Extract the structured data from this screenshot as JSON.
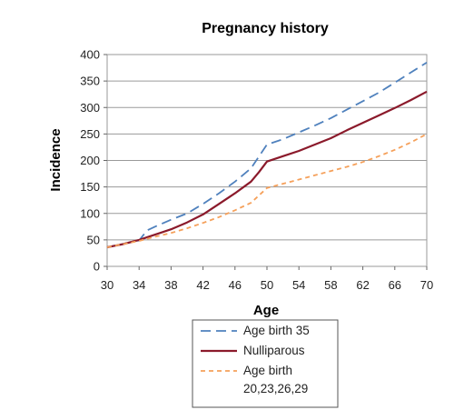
{
  "chart_data": {
    "type": "line",
    "title": "Pregnancy history",
    "xlabel": "Age",
    "ylabel": "Incidence",
    "xlim": [
      30,
      70
    ],
    "ylim": [
      0,
      400
    ],
    "xticks": [
      30,
      34,
      38,
      42,
      46,
      50,
      54,
      58,
      62,
      66,
      70
    ],
    "yticks": [
      0,
      50,
      100,
      150,
      200,
      250,
      300,
      350,
      400
    ],
    "grid": "horizontal",
    "legend_position": "bottom",
    "series": [
      {
        "name": "Age birth 35",
        "color": "#4f81bd",
        "style": "dashed",
        "x": [
          30,
          34,
          35,
          36,
          38,
          40,
          42,
          44,
          46,
          48,
          50,
          52,
          54,
          56,
          58,
          60,
          62,
          64,
          66,
          68,
          70
        ],
        "y": [
          36,
          49,
          68,
          75,
          88,
          100,
          118,
          138,
          160,
          185,
          230,
          240,
          253,
          266,
          280,
          296,
          312,
          328,
          347,
          366,
          385
        ]
      },
      {
        "name": "Nulliparous",
        "color": "#8b1a2b",
        "style": "solid",
        "x": [
          30,
          32,
          34,
          36,
          38,
          40,
          42,
          44,
          46,
          48,
          49,
          50,
          52,
          54,
          56,
          58,
          60,
          62,
          64,
          66,
          68,
          70
        ],
        "y": [
          36,
          42,
          50,
          60,
          70,
          83,
          98,
          118,
          138,
          160,
          178,
          198,
          208,
          218,
          230,
          242,
          257,
          271,
          285,
          299,
          314,
          330
        ]
      },
      {
        "name": "Age birth 20,23,26,29",
        "legend_lines": [
          "Age birth",
          "20,23,26,29"
        ],
        "color": "#f5a05a",
        "style": "dotted",
        "x": [
          30,
          32,
          34,
          36,
          38,
          40,
          42,
          44,
          46,
          48,
          50,
          52,
          54,
          56,
          58,
          60,
          62,
          64,
          66,
          68,
          70
        ],
        "y": [
          36,
          42,
          48,
          56,
          63,
          72,
          82,
          93,
          106,
          120,
          148,
          156,
          164,
          172,
          180,
          188,
          197,
          208,
          220,
          234,
          250
        ]
      }
    ]
  }
}
